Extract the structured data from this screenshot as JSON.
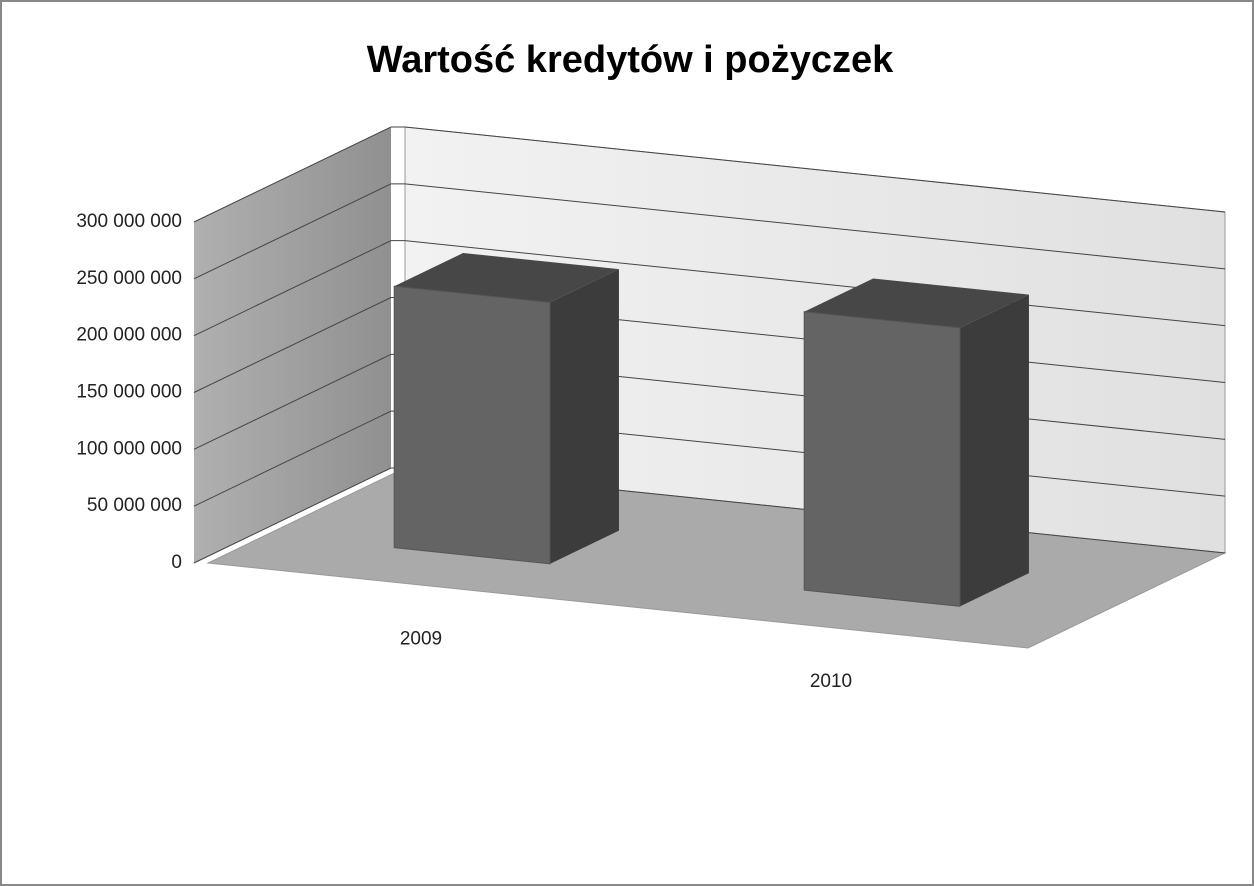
{
  "chart_data": {
    "type": "bar3d",
    "title": "Wartość kredytów i pożyczek",
    "categories": [
      "2009",
      "2010"
    ],
    "values": [
      230000000,
      245000000
    ],
    "color": "#646464",
    "ylim": [
      0,
      300000000
    ],
    "yticks": [
      {
        "value": 0,
        "label": "0"
      },
      {
        "value": 50000000,
        "label": "50 000 000"
      },
      {
        "value": 100000000,
        "label": "100 000 000"
      },
      {
        "value": 150000000,
        "label": "150 000 000"
      },
      {
        "value": 200000000,
        "label": "200 000 000"
      },
      {
        "value": 250000000,
        "label": "250 000 000"
      },
      {
        "value": 300000000,
        "label": "300 000 000"
      }
    ],
    "grid": true
  }
}
